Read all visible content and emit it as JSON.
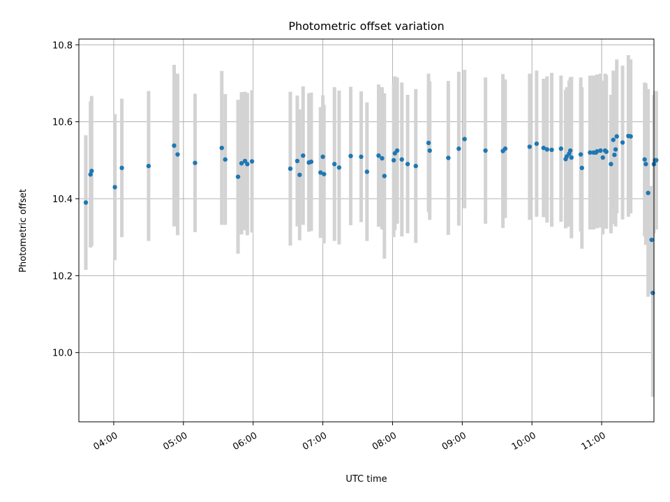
{
  "chart_data": {
    "type": "scatter",
    "title": "Photometric offset variation",
    "xlabel": "UTC time",
    "ylabel": "Photometric offset",
    "grid": true,
    "xlim": [
      "03:30",
      "11:45"
    ],
    "ylim": [
      9.82,
      10.815
    ],
    "x_ticks": [
      "04:00",
      "05:00",
      "06:00",
      "07:00",
      "08:00",
      "09:00",
      "10:00",
      "11:00"
    ],
    "y_ticks": [
      10.0,
      10.2,
      10.4,
      10.6,
      10.8
    ],
    "y_tick_labels": [
      "10.0",
      "10.2",
      "10.4",
      "10.6",
      "10.8"
    ],
    "colors": {
      "point": "#1f77b4",
      "error_bar": "#d3d3d3"
    },
    "series": [
      {
        "x": [
          "03:36",
          "03:40",
          "03:41",
          "04:01",
          "04:07",
          "04:30",
          "04:52",
          "04:55",
          "05:10",
          "05:33",
          "05:36",
          "05:47",
          "05:50",
          "05:53",
          "05:55",
          "05:59",
          "06:32",
          "06:38",
          "06:40",
          "06:43",
          "06:48",
          "06:50",
          "06:58",
          "07:00",
          "07:01",
          "07:10",
          "07:14",
          "07:24",
          "07:33",
          "07:38",
          "07:48",
          "07:51",
          "07:53",
          "08:01",
          "08:02",
          "08:04",
          "08:08",
          "08:13",
          "08:20",
          "08:31",
          "08:32",
          "08:48",
          "08:57",
          "09:02",
          "09:20",
          "09:35",
          "09:37",
          "09:58",
          "10:04",
          "10:10",
          "10:13",
          "10:17",
          "10:25",
          "10:29",
          "10:30",
          "10:32",
          "10:33",
          "10:34",
          "10:42",
          "10:43",
          "10:50",
          "10:53",
          "10:55",
          "10:56",
          "10:59",
          "11:01",
          "11:03",
          "11:04",
          "11:08",
          "11:10",
          "11:11",
          "11:12",
          "11:13",
          "11:18",
          "11:23",
          "11:25",
          "11:37",
          "11:38",
          "11:40",
          "11:43",
          "11:44",
          "11:45",
          "11:45",
          "11:46",
          "11:47"
        ],
        "y": [
          10.39,
          10.463,
          10.472,
          10.43,
          10.48,
          10.485,
          10.538,
          10.515,
          10.493,
          10.532,
          10.502,
          10.457,
          10.492,
          10.498,
          10.49,
          10.497,
          10.478,
          10.498,
          10.462,
          10.512,
          10.494,
          10.496,
          10.468,
          10.509,
          10.464,
          10.49,
          10.481,
          10.511,
          10.509,
          10.47,
          10.512,
          10.505,
          10.459,
          10.5,
          10.518,
          10.525,
          10.502,
          10.49,
          10.485,
          10.545,
          10.525,
          10.506,
          10.53,
          10.555,
          10.525,
          10.524,
          10.53,
          10.535,
          10.543,
          10.532,
          10.528,
          10.527,
          10.53,
          10.503,
          10.51,
          10.517,
          10.525,
          10.507,
          10.515,
          10.48,
          10.52,
          10.52,
          10.52,
          10.523,
          10.525,
          10.507,
          10.525,
          10.522,
          10.49,
          10.553,
          10.514,
          10.528,
          10.562,
          10.546,
          10.563,
          10.562,
          10.502,
          10.49,
          10.415,
          10.293,
          10.155,
          10.49,
          10.49,
          10.5,
          10.5
        ],
        "err": [
          0.175,
          0.19,
          0.195,
          0.19,
          0.18,
          0.195,
          0.21,
          0.21,
          0.18,
          0.2,
          0.17,
          0.2,
          0.185,
          0.18,
          0.185,
          0.185,
          0.2,
          0.17,
          0.17,
          0.18,
          0.18,
          0.18,
          0.17,
          0.16,
          0.18,
          0.2,
          0.2,
          0.18,
          0.17,
          0.18,
          0.185,
          0.185,
          0.215,
          0.2,
          0.2,
          0.19,
          0.2,
          0.18,
          0.2,
          0.18,
          0.18,
          0.2,
          0.2,
          0.18,
          0.19,
          0.2,
          0.18,
          0.19,
          0.19,
          0.18,
          0.19,
          0.2,
          0.19,
          0.18,
          0.18,
          0.19,
          0.19,
          0.21,
          0.2,
          0.21,
          0.2,
          0.2,
          0.19,
          0.2,
          0.2,
          0.2,
          0.2,
          0.2,
          0.18,
          0.18,
          0.18,
          0.2,
          0.2,
          0.2,
          0.21,
          0.2,
          0.2,
          0.21,
          0.27,
          0.14,
          0.27,
          0.18,
          0.18,
          0.18,
          0.18
        ]
      }
    ]
  }
}
